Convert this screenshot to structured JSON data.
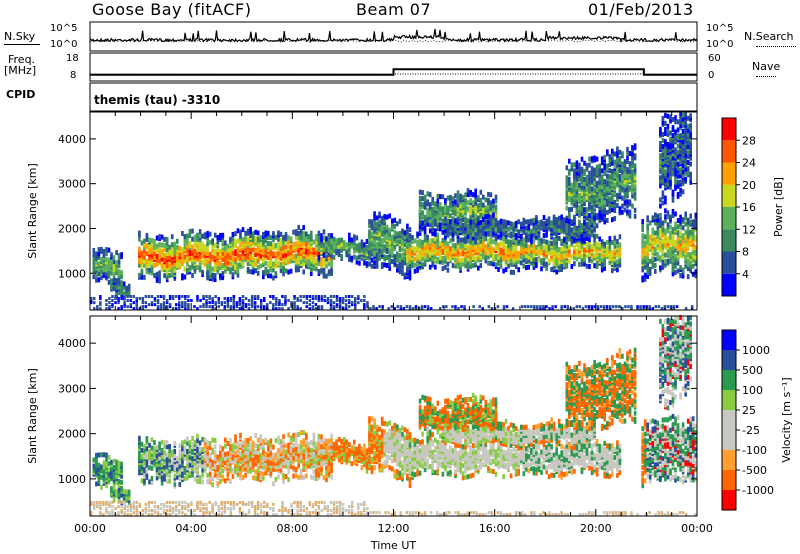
{
  "header": {
    "station": "Goose Bay (fitACF)",
    "beam": "Beam 07",
    "date": "01/Feb/2013"
  },
  "noise_panel": {
    "left_label": "N.Sky",
    "right_label": "N.Search",
    "left_ticks": [
      "10^5",
      "10^0"
    ],
    "right_ticks": [
      "10^5",
      "10^0"
    ]
  },
  "freq_panel": {
    "left_label_top": "Freq.",
    "left_label_unit": "[MHz]",
    "right_label": "Nave",
    "left_ticks": [
      "18",
      "8"
    ],
    "right_ticks": [
      "60",
      "0"
    ]
  },
  "cpid": {
    "label": "CPID",
    "program": "themis (tau) -3310"
  },
  "colors": {
    "power": [
      "#0000ff",
      "#2a4f9a",
      "#3a8a60",
      "#5cb25c",
      "#c8d820",
      "#ffa000",
      "#ff5800",
      "#ff0000"
    ],
    "velocity": [
      "#ff0000",
      "#ff6600",
      "#ffa030",
      "#c8c8c0",
      "#c8c8c0",
      "#88cc44",
      "#2a9a50",
      "#2a4f9a",
      "#0000ff"
    ],
    "ground": "#c8c8c0"
  },
  "chart_data": [
    {
      "type": "heatmap",
      "name": "power-panel",
      "ylabel": "Slant Range [km]",
      "xlabel": "Time UT",
      "x_ticks": [
        "00:00",
        "04:00",
        "08:00",
        "12:00",
        "16:00",
        "20:00",
        "00:00"
      ],
      "y_ticks": [
        1000,
        2000,
        3000,
        4000
      ],
      "ylim": [
        180,
        4600
      ],
      "xlim_hours": [
        0,
        24
      ],
      "colorbar": {
        "title": "Power [dB]",
        "ticks": [
          4,
          8,
          12,
          16,
          20,
          24,
          28
        ],
        "range": [
          0,
          32
        ]
      }
    },
    {
      "type": "heatmap",
      "name": "velocity-panel",
      "ylabel": "Slant Range [km]",
      "xlabel": "Time UT",
      "x_ticks": [
        "00:00",
        "04:00",
        "08:00",
        "12:00",
        "16:00",
        "20:00",
        "00:00"
      ],
      "y_ticks": [
        1000,
        2000,
        3000,
        4000
      ],
      "ylim": [
        180,
        4600
      ],
      "xlim_hours": [
        0,
        24
      ],
      "colorbar": {
        "title": "Velocity [m s⁻¹]",
        "ticks": [
          "1000",
          "500",
          "100",
          "25",
          "-25",
          "-100",
          "-500",
          "-1000"
        ]
      }
    }
  ]
}
